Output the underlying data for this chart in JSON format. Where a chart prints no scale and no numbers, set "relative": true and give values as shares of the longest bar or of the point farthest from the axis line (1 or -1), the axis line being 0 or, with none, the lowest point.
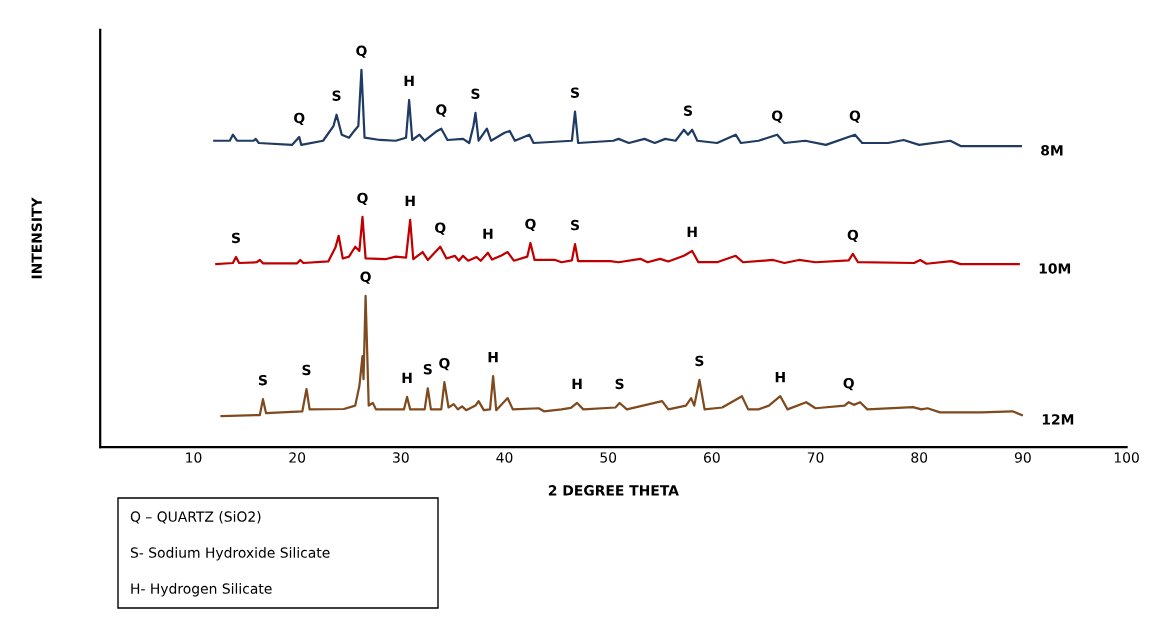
{
  "chart_data": {
    "type": "line",
    "relative": true,
    "xlabel": "2 DEGREE THETA",
    "ylabel": "INTENSITY",
    "xlim": [
      1,
      100
    ],
    "xticks": [
      10,
      20,
      30,
      40,
      50,
      60,
      70,
      80,
      90,
      100
    ],
    "tick_labels": "x",
    "grid": false,
    "legend": false,
    "marker": "none",
    "line_style": "solid",
    "series": [
      {
        "name": "8M",
        "color": "#1f3b63",
        "x": [
          12.0,
          13.5,
          13.8,
          14.2,
          15.8,
          16.0,
          16.3,
          19.5,
          20.2,
          20.4,
          22.5,
          23.5,
          23.8,
          24.3,
          25.0,
          25.5,
          25.9,
          26.2,
          26.5,
          28.0,
          29.5,
          30.5,
          30.8,
          31.1,
          31.8,
          32.3,
          33.5,
          33.9,
          34.5,
          36.0,
          36.6,
          37.0,
          37.2,
          37.5,
          38.3,
          38.7,
          40.0,
          40.5,
          41.0,
          42.4,
          42.8,
          46.5,
          46.8,
          47.1,
          50.5,
          51.0,
          52.0,
          53.5,
          54.5,
          55.5,
          56.5,
          57.3,
          57.7,
          58.1,
          58.6,
          60.5,
          62.3,
          62.8,
          64.5,
          66.3,
          67.0,
          69.0,
          71.0,
          73.8,
          74.5,
          77.0,
          78.5,
          80.0,
          83.0,
          84.0,
          87.0,
          89.8
        ],
        "values": [
          0.812,
          0.812,
          0.828,
          0.812,
          0.812,
          0.817,
          0.806,
          0.801,
          0.822,
          0.801,
          0.812,
          0.851,
          0.881,
          0.828,
          0.82,
          0.838,
          0.851,
          1.0,
          0.82,
          0.814,
          0.812,
          0.82,
          0.92,
          0.814,
          0.828,
          0.812,
          0.838,
          0.844,
          0.814,
          0.817,
          0.806,
          0.851,
          0.886,
          0.812,
          0.844,
          0.812,
          0.833,
          0.838,
          0.812,
          0.828,
          0.806,
          0.812,
          0.889,
          0.806,
          0.812,
          0.817,
          0.806,
          0.817,
          0.806,
          0.817,
          0.812,
          0.841,
          0.828,
          0.841,
          0.812,
          0.806,
          0.828,
          0.806,
          0.812,
          0.828,
          0.806,
          0.812,
          0.801,
          0.828,
          0.806,
          0.806,
          0.814,
          0.801,
          0.812,
          0.798,
          0.798,
          0.798
        ]
      },
      {
        "name": "10M",
        "color": "#c00000",
        "x": [
          12.2,
          13.8,
          14.1,
          14.4,
          16.1,
          16.4,
          16.7,
          20.0,
          20.3,
          20.6,
          23.0,
          23.7,
          24.0,
          24.4,
          25.0,
          25.6,
          26.0,
          26.3,
          26.6,
          28.5,
          29.5,
          30.5,
          30.9,
          31.2,
          32.1,
          32.6,
          33.8,
          34.4,
          35.2,
          35.6,
          36.0,
          36.5,
          37.3,
          37.7,
          38.4,
          38.8,
          39.7,
          40.3,
          40.9,
          42.2,
          42.5,
          42.9,
          44.9,
          45.5,
          46.5,
          46.8,
          47.1,
          50.2,
          51.0,
          53.1,
          53.8,
          55.0,
          55.8,
          57.3,
          58.1,
          58.7,
          60.5,
          62.3,
          63.0,
          65.9,
          67.0,
          68.4,
          70.0,
          73.2,
          73.6,
          74.1,
          79.5,
          80.1,
          80.7,
          83.1,
          84.0,
          89.6
        ],
        "values": [
          0.485,
          0.488,
          0.504,
          0.488,
          0.49,
          0.496,
          0.487,
          0.487,
          0.496,
          0.488,
          0.492,
          0.53,
          0.56,
          0.5,
          0.505,
          0.531,
          0.52,
          0.61,
          0.5,
          0.498,
          0.505,
          0.502,
          0.602,
          0.498,
          0.517,
          0.496,
          0.531,
          0.5,
          0.507,
          0.494,
          0.507,
          0.494,
          0.504,
          0.494,
          0.515,
          0.497,
          0.508,
          0.517,
          0.494,
          0.505,
          0.541,
          0.496,
          0.496,
          0.49,
          0.495,
          0.538,
          0.493,
          0.493,
          0.49,
          0.499,
          0.49,
          0.499,
          0.492,
          0.507,
          0.52,
          0.49,
          0.49,
          0.507,
          0.49,
          0.496,
          0.488,
          0.496,
          0.49,
          0.495,
          0.512,
          0.49,
          0.488,
          0.496,
          0.486,
          0.493,
          0.485,
          0.485
        ]
      },
      {
        "name": "12M",
        "color": "#7f4a1e",
        "x": [
          12.7,
          16.4,
          16.7,
          17.0,
          20.5,
          20.9,
          21.2,
          24.5,
          25.6,
          26.0,
          26.3,
          26.4,
          26.6,
          26.9,
          27.3,
          27.6,
          30.3,
          30.6,
          30.9,
          32.3,
          32.6,
          32.9,
          33.9,
          34.2,
          34.6,
          35.1,
          35.5,
          35.9,
          36.3,
          37.2,
          37.5,
          38.0,
          38.6,
          38.9,
          39.2,
          40.3,
          40.8,
          43.3,
          43.8,
          45.5,
          46.4,
          47.0,
          47.6,
          50.7,
          51.1,
          51.8,
          55.2,
          55.8,
          57.5,
          58.0,
          58.3,
          58.8,
          59.3,
          61.0,
          62.9,
          63.5,
          64.5,
          65.5,
          66.6,
          67.3,
          69.1,
          70.0,
          72.8,
          73.2,
          73.7,
          74.3,
          75.0,
          79.4,
          80.2,
          80.8,
          82.0,
          86.0,
          89.0,
          89.9
        ],
        "values": [
          0.082,
          0.085,
          0.127,
          0.09,
          0.095,
          0.154,
          0.1,
          0.101,
          0.11,
          0.162,
          0.241,
          0.18,
          0.401,
          0.11,
          0.117,
          0.1,
          0.1,
          0.133,
          0.1,
          0.1,
          0.156,
          0.1,
          0.1,
          0.172,
          0.105,
          0.114,
          0.1,
          0.108,
          0.098,
          0.11,
          0.122,
          0.098,
          0.1,
          0.188,
          0.098,
          0.13,
          0.1,
          0.103,
          0.095,
          0.1,
          0.104,
          0.117,
          0.1,
          0.105,
          0.117,
          0.1,
          0.122,
          0.1,
          0.11,
          0.13,
          0.11,
          0.178,
          0.1,
          0.105,
          0.135,
          0.1,
          0.1,
          0.11,
          0.135,
          0.1,
          0.119,
          0.103,
          0.11,
          0.119,
          0.112,
          0.119,
          0.1,
          0.106,
          0.1,
          0.103,
          0.092,
          0.092,
          0.095,
          0.085
        ]
      }
    ],
    "annotations": [
      {
        "text": "Q",
        "x": 20.2,
        "y": 0.822
      },
      {
        "text": "S",
        "x": 23.8,
        "y": 0.881
      },
      {
        "text": "Q",
        "x": 26.2,
        "y": 1.0
      },
      {
        "text": "H",
        "x": 30.8,
        "y": 0.92
      },
      {
        "text": "Q",
        "x": 33.9,
        "y": 0.844
      },
      {
        "text": "S",
        "x": 37.2,
        "y": 0.886
      },
      {
        "text": "S",
        "x": 46.8,
        "y": 0.889
      },
      {
        "text": "S",
        "x": 57.7,
        "y": 0.841
      },
      {
        "text": "Q",
        "x": 66.3,
        "y": 0.828
      },
      {
        "text": "Q",
        "x": 73.8,
        "y": 0.828
      },
      {
        "text": "S",
        "x": 14.1,
        "y": 0.504
      },
      {
        "text": "Q",
        "x": 26.3,
        "y": 0.61
      },
      {
        "text": "H",
        "x": 30.9,
        "y": 0.602
      },
      {
        "text": "Q",
        "x": 33.8,
        "y": 0.531
      },
      {
        "text": "H",
        "x": 38.4,
        "y": 0.515
      },
      {
        "text": "Q",
        "x": 42.5,
        "y": 0.541
      },
      {
        "text": "S",
        "x": 46.8,
        "y": 0.538
      },
      {
        "text": "H",
        "x": 58.1,
        "y": 0.52
      },
      {
        "text": "Q",
        "x": 73.6,
        "y": 0.512
      },
      {
        "text": "S",
        "x": 16.7,
        "y": 0.127
      },
      {
        "text": "S",
        "x": 20.9,
        "y": 0.154
      },
      {
        "text": "Q",
        "x": 26.6,
        "y": 0.401
      },
      {
        "text": "H",
        "x": 30.6,
        "y": 0.133
      },
      {
        "text": "S",
        "x": 32.6,
        "y": 0.156
      },
      {
        "text": "Q",
        "x": 34.2,
        "y": 0.172
      },
      {
        "text": "H",
        "x": 38.9,
        "y": 0.188
      },
      {
        "text": "H",
        "x": 47.0,
        "y": 0.117
      },
      {
        "text": "S",
        "x": 51.1,
        "y": 0.117
      },
      {
        "text": "S",
        "x": 58.8,
        "y": 0.178
      },
      {
        "text": "H",
        "x": 66.6,
        "y": 0.135
      },
      {
        "text": "Q",
        "x": 73.2,
        "y": 0.119
      },
      "Q – QUARTZ (SiO2)",
      "S- Sodium Hydroxide Silicate",
      "H- Hydrogen Silicate"
    ]
  }
}
